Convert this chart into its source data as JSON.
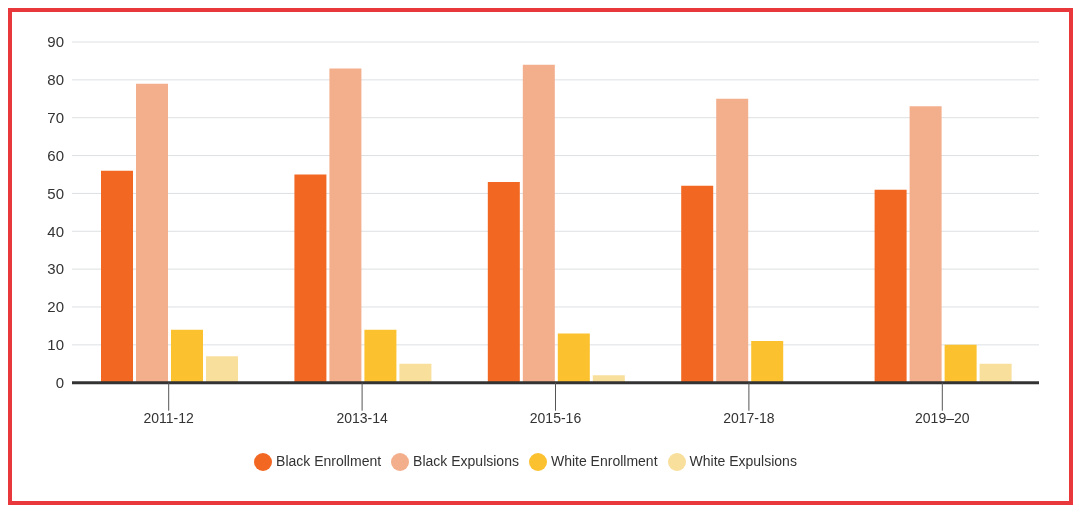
{
  "chart_data": {
    "type": "bar",
    "categories": [
      "2011-12",
      "2013-14",
      "2015-16",
      "2017-18",
      "2019–20"
    ],
    "series": [
      {
        "name": "Black Enrollment",
        "color": "#f26722",
        "values": [
          56,
          55,
          53,
          52,
          51
        ]
      },
      {
        "name": "Black Expulsions",
        "color": "#f3ae8c",
        "values": [
          79,
          83,
          84,
          75,
          73
        ]
      },
      {
        "name": "White Enrollment",
        "color": "#fbc12e",
        "values": [
          14,
          14,
          13,
          11,
          10
        ]
      },
      {
        "name": "White Expulsions",
        "color": "#f9df9c",
        "values": [
          7,
          5,
          2,
          null,
          5
        ]
      }
    ],
    "ylim": [
      0,
      90
    ],
    "yticks": [
      0,
      10,
      20,
      30,
      40,
      50,
      60,
      70,
      80,
      90
    ],
    "grid": "y",
    "legend": "bottom"
  }
}
